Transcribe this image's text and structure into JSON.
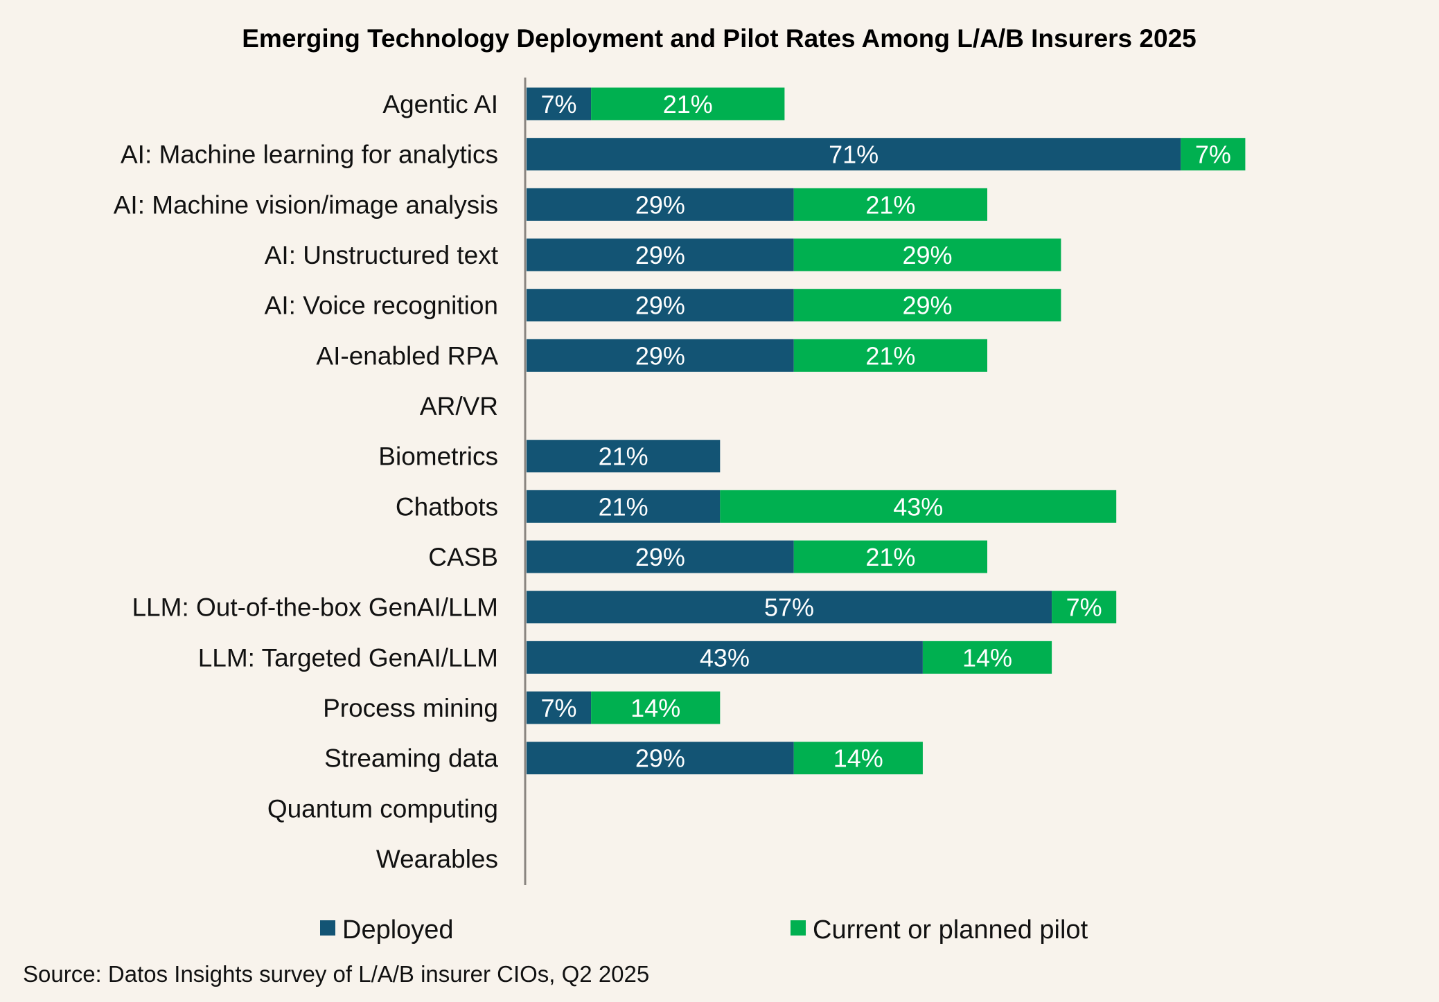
{
  "chart_data": {
    "type": "bar",
    "orientation": "horizontal",
    "stacked": true,
    "title": "Emerging Technology Deployment and Pilot Rates Among L/A/B Insurers 2025",
    "xlabel": "",
    "ylabel": "",
    "xlim": [
      0,
      100
    ],
    "grid": false,
    "legend_position": "bottom",
    "categories": [
      "Agentic AI",
      "AI: Machine learning for analytics",
      "AI: Machine vision/image analysis",
      "AI: Unstructured text",
      "AI: Voice recognition",
      "AI-enabled RPA",
      "AR/VR",
      "Biometrics",
      "Chatbots",
      "CASB",
      "LLM: Out-of-the-box GenAI/LLM",
      "LLM: Targeted GenAI/LLM",
      "Process mining",
      "Streaming data",
      "Quantum computing",
      "Wearables"
    ],
    "series": [
      {
        "name": "Deployed",
        "color": "#135474",
        "values": [
          7,
          71,
          29,
          29,
          29,
          29,
          0,
          21,
          21,
          29,
          57,
          43,
          7,
          29,
          0,
          0
        ]
      },
      {
        "name": "Current or planned pilot",
        "color": "#00b050",
        "values": [
          21,
          7,
          21,
          29,
          29,
          21,
          0,
          0,
          43,
          21,
          7,
          14,
          14,
          14,
          0,
          0
        ]
      }
    ],
    "source": "Source: Datos Insights survey of L/A/B insurer CIOs, Q2 2025"
  }
}
